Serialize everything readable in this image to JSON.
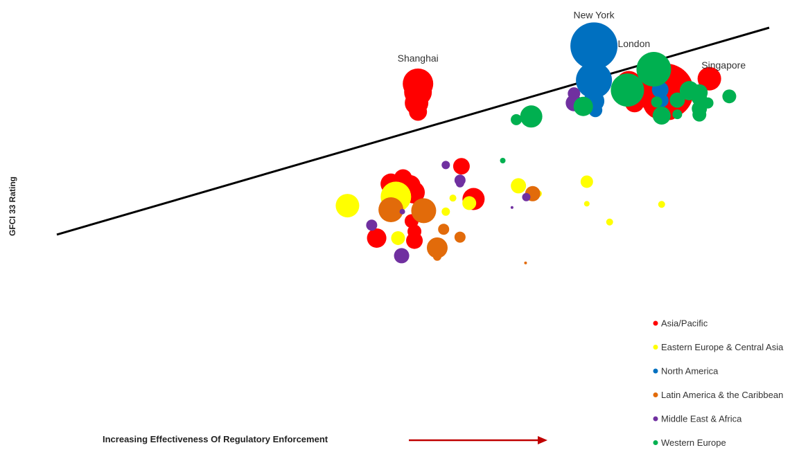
{
  "chart_data": {
    "type": "scatter",
    "title": "",
    "ylabel": "GFCI 33 Rating",
    "xlabel": "Increasing Effectiveness Of Regulatory Enforcement",
    "axes_visible": false,
    "grid": false,
    "legend_position": "bottom-right",
    "xlim": [
      0,
      100
    ],
    "ylim": [
      0,
      100
    ],
    "trendline": {
      "x": [
        0,
        100
      ],
      "y": [
        34.3,
        100
      ]
    },
    "series": [
      {
        "name": "Asia/Pacific",
        "color": "#ff0000",
        "points": [
          {
            "x": 50.7,
            "y": 82.2,
            "size": 22,
            "label": "Shanghai"
          },
          {
            "x": 50.7,
            "y": 79.6,
            "size": 20
          },
          {
            "x": 50.5,
            "y": 76.1,
            "size": 17
          },
          {
            "x": 50.7,
            "y": 73.3,
            "size": 13
          },
          {
            "x": 80.3,
            "y": 82.3,
            "size": 18
          },
          {
            "x": 81.4,
            "y": 80.2,
            "size": 16
          },
          {
            "x": 85.5,
            "y": 79.8,
            "size": 40
          },
          {
            "x": 84.7,
            "y": 76.4,
            "size": 25
          },
          {
            "x": 81.1,
            "y": 76.2,
            "size": 14
          },
          {
            "x": 91.6,
            "y": 83.8,
            "size": 17
          },
          {
            "x": 86.1,
            "y": 73.1,
            "size": 11
          },
          {
            "x": 90.5,
            "y": 72.4,
            "size": 2
          },
          {
            "x": 56.8,
            "y": 56.0,
            "size": 12
          },
          {
            "x": 46.9,
            "y": 50.4,
            "size": 15
          },
          {
            "x": 48.6,
            "y": 52.2,
            "size": 13
          },
          {
            "x": 49.6,
            "y": 49.9,
            "size": 15
          },
          {
            "x": 50.1,
            "y": 47.7,
            "size": 16
          },
          {
            "x": 48.0,
            "y": 45.8,
            "size": 14
          },
          {
            "x": 58.5,
            "y": 45.6,
            "size": 16
          },
          {
            "x": 49.8,
            "y": 38.6,
            "size": 10
          },
          {
            "x": 50.2,
            "y": 35.3,
            "size": 10
          },
          {
            "x": 50.2,
            "y": 32.4,
            "size": 12
          },
          {
            "x": 44.9,
            "y": 33.2,
            "size": 14
          }
        ]
      },
      {
        "name": "Eastern Europe & Central Asia",
        "color": "#ffff00",
        "points": [
          {
            "x": 47.6,
            "y": 46.3,
            "size": 22
          },
          {
            "x": 40.8,
            "y": 43.5,
            "size": 17
          },
          {
            "x": 47.9,
            "y": 33.2,
            "size": 10
          },
          {
            "x": 57.9,
            "y": 44.3,
            "size": 10
          },
          {
            "x": 55.6,
            "y": 45.9,
            "size": 5
          },
          {
            "x": 54.6,
            "y": 41.6,
            "size": 6
          },
          {
            "x": 64.8,
            "y": 49.8,
            "size": 11
          },
          {
            "x": 67.6,
            "y": 47.3,
            "size": 5
          },
          {
            "x": 74.4,
            "y": 51.1,
            "size": 9
          },
          {
            "x": 74.4,
            "y": 44.1,
            "size": 4
          },
          {
            "x": 77.6,
            "y": 38.3,
            "size": 5
          },
          {
            "x": 84.9,
            "y": 43.9,
            "size": 5
          }
        ]
      },
      {
        "name": "North America",
        "color": "#0070c0",
        "points": [
          {
            "x": 75.4,
            "y": 94.2,
            "size": 34,
            "label": "New York"
          },
          {
            "x": 75.4,
            "y": 83.3,
            "size": 26
          },
          {
            "x": 75.4,
            "y": 76.7,
            "size": 15
          },
          {
            "x": 75.6,
            "y": 73.8,
            "size": 10
          },
          {
            "x": 84.7,
            "y": 80.3,
            "size": 12
          },
          {
            "x": 84.9,
            "y": 76.9,
            "size": 10
          },
          {
            "x": 84.9,
            "y": 72.7,
            "size": 9
          }
        ]
      },
      {
        "name": "Latin America & the Caribbean",
        "color": "#e26b0a",
        "points": [
          {
            "x": 46.9,
            "y": 42.2,
            "size": 18
          },
          {
            "x": 51.5,
            "y": 41.9,
            "size": 18
          },
          {
            "x": 54.3,
            "y": 36.0,
            "size": 8
          },
          {
            "x": 56.6,
            "y": 33.5,
            "size": 8
          },
          {
            "x": 53.4,
            "y": 30.1,
            "size": 15
          },
          {
            "x": 53.4,
            "y": 27.3,
            "size": 6
          },
          {
            "x": 66.8,
            "y": 47.3,
            "size": 11
          },
          {
            "x": 65.8,
            "y": 25.3,
            "size": 2
          }
        ]
      },
      {
        "name": "Middle East & Africa",
        "color": "#7030a0",
        "points": [
          {
            "x": 54.6,
            "y": 56.4,
            "size": 6
          },
          {
            "x": 56.6,
            "y": 51.6,
            "size": 8
          },
          {
            "x": 56.6,
            "y": 50.6,
            "size": 6
          },
          {
            "x": 44.2,
            "y": 37.3,
            "size": 8
          },
          {
            "x": 48.5,
            "y": 41.6,
            "size": 4
          },
          {
            "x": 48.4,
            "y": 27.6,
            "size": 11
          },
          {
            "x": 65.9,
            "y": 46.2,
            "size": 6
          },
          {
            "x": 63.9,
            "y": 42.9,
            "size": 2
          },
          {
            "x": 72.6,
            "y": 79.1,
            "size": 9
          },
          {
            "x": 72.6,
            "y": 76.1,
            "size": 12
          }
        ]
      },
      {
        "name": "Western Europe",
        "color": "#00b050",
        "points": [
          {
            "x": 83.8,
            "y": 86.8,
            "size": 25,
            "label": "London"
          },
          {
            "x": 80.1,
            "y": 80.2,
            "size": 24
          },
          {
            "x": 84.2,
            "y": 76.4,
            "size": 8
          },
          {
            "x": 73.9,
            "y": 75.0,
            "size": 14
          },
          {
            "x": 87.1,
            "y": 77.0,
            "size": 11
          },
          {
            "x": 88.8,
            "y": 80.0,
            "size": 14
          },
          {
            "x": 90.2,
            "y": 79.4,
            "size": 12
          },
          {
            "x": 90.2,
            "y": 77.6,
            "size": 11
          },
          {
            "x": 91.4,
            "y": 76.1,
            "size": 8
          },
          {
            "x": 94.4,
            "y": 78.2,
            "size": 10
          },
          {
            "x": 90.2,
            "y": 74.3,
            "size": 11
          },
          {
            "x": 90.2,
            "y": 72.4,
            "size": 10
          },
          {
            "x": 87.1,
            "y": 72.5,
            "size": 7
          },
          {
            "x": 84.9,
            "y": 72.1,
            "size": 13
          },
          {
            "x": 66.6,
            "y": 71.8,
            "size": 16
          },
          {
            "x": 64.5,
            "y": 70.8,
            "size": 8
          },
          {
            "x": 62.6,
            "y": 57.8,
            "size": 4
          }
        ]
      }
    ]
  },
  "extra_labels": [
    {
      "text": "Singapore",
      "x": 93.6,
      "y": 87.0
    }
  ]
}
